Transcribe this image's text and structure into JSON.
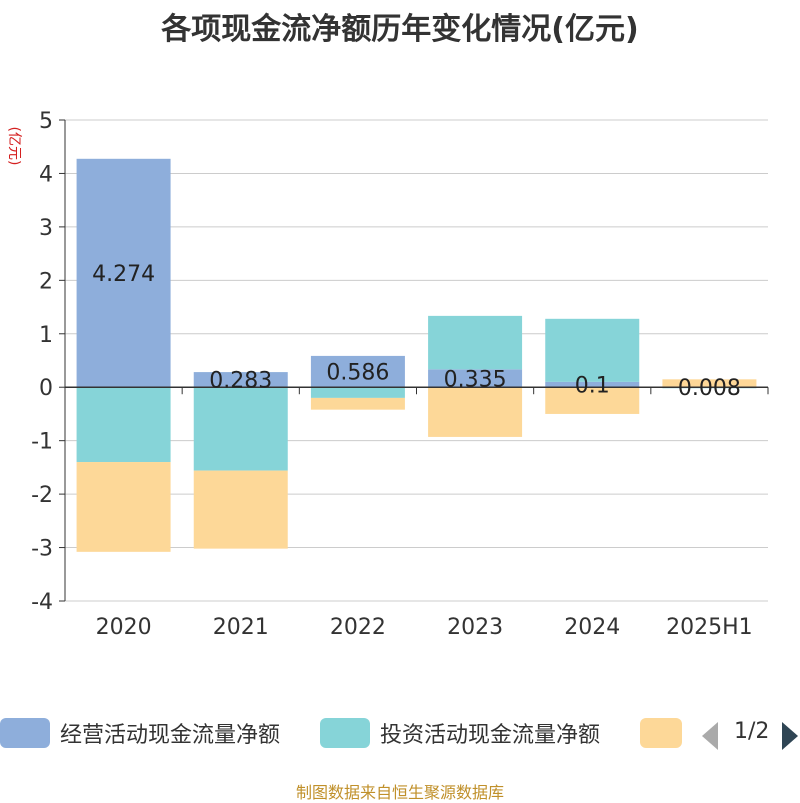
{
  "chart_data": {
    "type": "bar",
    "stacked": true,
    "title": "各项现金流净额历年变化情况(亿元)",
    "ylabel": "(亿元)",
    "categories": [
      "2020",
      "2021",
      "2022",
      "2023",
      "2024",
      "2025H1"
    ],
    "ylim": [
      -4,
      5
    ],
    "yticks": [
      5,
      4,
      3,
      2,
      1,
      0,
      -1,
      -2,
      -3,
      -4
    ],
    "grid": true,
    "series": [
      {
        "name": "经营活动现金流量净额",
        "color": "#8eaedb",
        "values": [
          4.274,
          0.283,
          0.586,
          0.335,
          0.1,
          0.008
        ],
        "labels": [
          "4.274",
          "0.283",
          "0.586",
          "0.335",
          "0.1",
          "0.008"
        ]
      },
      {
        "name": "投资活动现金流量净额",
        "color": "#86d4d8",
        "values": [
          -1.4,
          -1.56,
          -0.2,
          1.0,
          1.18,
          -0.02
        ]
      },
      {
        "name": "",
        "color": "#fdd898",
        "values": [
          -1.68,
          -1.46,
          -0.22,
          -0.93,
          -0.5,
          0.14
        ]
      }
    ]
  },
  "legend": {
    "page": "1/2"
  },
  "source": "制图数据来自恒生聚源数据库"
}
